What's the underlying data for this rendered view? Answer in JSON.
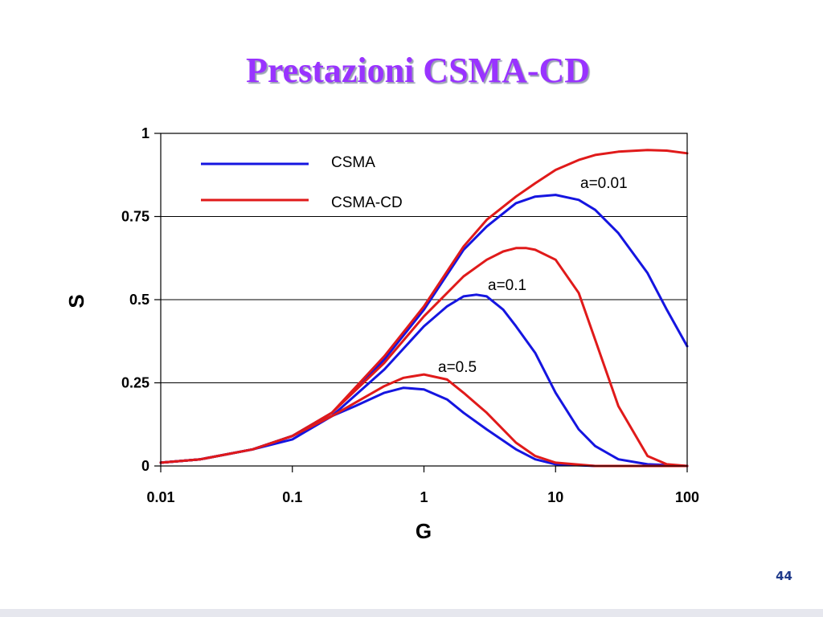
{
  "slide": {
    "title": "Prestazioni CSMA-CD",
    "page_number": "44"
  },
  "colors": {
    "title": "#9933ff",
    "csma": "#1515e0",
    "csma_cd": "#e01a1a",
    "page_number": "#1f3a8a"
  },
  "chart_data": {
    "type": "line",
    "xlabel": "G",
    "ylabel": "S",
    "xscale": "log",
    "xlim": [
      0.01,
      100
    ],
    "ylim": [
      0,
      1
    ],
    "xticks": [
      {
        "value": 0.01,
        "label": "0.01"
      },
      {
        "value": 0.1,
        "label": "0.1"
      },
      {
        "value": 1,
        "label": "1"
      },
      {
        "value": 10,
        "label": "10"
      },
      {
        "value": 100,
        "label": "100"
      }
    ],
    "yticks": [
      {
        "value": 0,
        "label": "0"
      },
      {
        "value": 0.25,
        "label": "0.25"
      },
      {
        "value": 0.5,
        "label": "0.5"
      },
      {
        "value": 0.75,
        "label": "0.75"
      },
      {
        "value": 1,
        "label": "1"
      }
    ],
    "grid": "horizontal",
    "legend": {
      "position": "top-left",
      "entries": [
        {
          "label": "CSMA",
          "color": "#1515e0"
        },
        {
          "label": "CSMA-CD",
          "color": "#e01a1a"
        }
      ]
    },
    "annotations": [
      {
        "text": "a=0.01",
        "x": 25,
        "y": 0.85
      },
      {
        "text": "a=0.1",
        "x": 3.7,
        "y": 0.54
      },
      {
        "text": "a=0.5",
        "x": 1.5,
        "y": 0.29
      }
    ],
    "series": [
      {
        "protocol": "CSMA",
        "param": "a=0.01",
        "color": "#1515e0",
        "x": [
          0.01,
          0.02,
          0.05,
          0.1,
          0.2,
          0.5,
          1,
          2,
          3,
          5,
          7,
          10,
          15,
          20,
          30,
          50,
          70,
          100
        ],
        "y": [
          0.01,
          0.02,
          0.05,
          0.09,
          0.16,
          0.32,
          0.47,
          0.65,
          0.72,
          0.79,
          0.81,
          0.815,
          0.8,
          0.77,
          0.7,
          0.58,
          0.47,
          0.36
        ]
      },
      {
        "protocol": "CSMA-CD",
        "param": "a=0.01",
        "color": "#e01a1a",
        "x": [
          0.01,
          0.02,
          0.05,
          0.1,
          0.2,
          0.5,
          1,
          2,
          3,
          5,
          7,
          10,
          15,
          20,
          30,
          50,
          70,
          100
        ],
        "y": [
          0.01,
          0.02,
          0.05,
          0.09,
          0.16,
          0.33,
          0.48,
          0.66,
          0.74,
          0.81,
          0.85,
          0.89,
          0.92,
          0.935,
          0.945,
          0.95,
          0.948,
          0.94
        ]
      },
      {
        "protocol": "CSMA",
        "param": "a=0.1",
        "color": "#1515e0",
        "x": [
          0.01,
          0.02,
          0.05,
          0.1,
          0.2,
          0.5,
          1,
          1.5,
          2,
          2.5,
          3,
          4,
          5,
          7,
          10,
          15,
          20,
          30,
          50,
          100
        ],
        "y": [
          0.01,
          0.02,
          0.05,
          0.08,
          0.15,
          0.29,
          0.42,
          0.48,
          0.51,
          0.515,
          0.51,
          0.47,
          0.42,
          0.34,
          0.22,
          0.11,
          0.06,
          0.02,
          0.005,
          0.0
        ]
      },
      {
        "protocol": "CSMA-CD",
        "param": "a=0.1",
        "color": "#e01a1a",
        "x": [
          0.01,
          0.02,
          0.05,
          0.1,
          0.2,
          0.5,
          1,
          2,
          3,
          4,
          5,
          6,
          7,
          10,
          15,
          20,
          30,
          50,
          70,
          100
        ],
        "y": [
          0.01,
          0.02,
          0.05,
          0.09,
          0.16,
          0.31,
          0.45,
          0.57,
          0.62,
          0.645,
          0.655,
          0.655,
          0.65,
          0.62,
          0.52,
          0.38,
          0.18,
          0.03,
          0.005,
          0.0
        ]
      },
      {
        "protocol": "CSMA",
        "param": "a=0.5",
        "color": "#1515e0",
        "x": [
          0.01,
          0.02,
          0.05,
          0.1,
          0.2,
          0.3,
          0.5,
          0.7,
          1,
          1.5,
          2,
          3,
          5,
          7,
          10,
          20,
          100
        ],
        "y": [
          0.01,
          0.02,
          0.05,
          0.09,
          0.15,
          0.18,
          0.22,
          0.235,
          0.23,
          0.2,
          0.16,
          0.11,
          0.05,
          0.02,
          0.005,
          0.0,
          0.0
        ]
      },
      {
        "protocol": "CSMA-CD",
        "param": "a=0.5",
        "color": "#e01a1a",
        "x": [
          0.01,
          0.02,
          0.05,
          0.1,
          0.2,
          0.3,
          0.5,
          0.7,
          1,
          1.5,
          2,
          3,
          5,
          7,
          10,
          20,
          100
        ],
        "y": [
          0.01,
          0.02,
          0.05,
          0.09,
          0.15,
          0.19,
          0.24,
          0.265,
          0.275,
          0.26,
          0.22,
          0.16,
          0.07,
          0.03,
          0.01,
          0.0,
          0.0
        ]
      }
    ]
  }
}
